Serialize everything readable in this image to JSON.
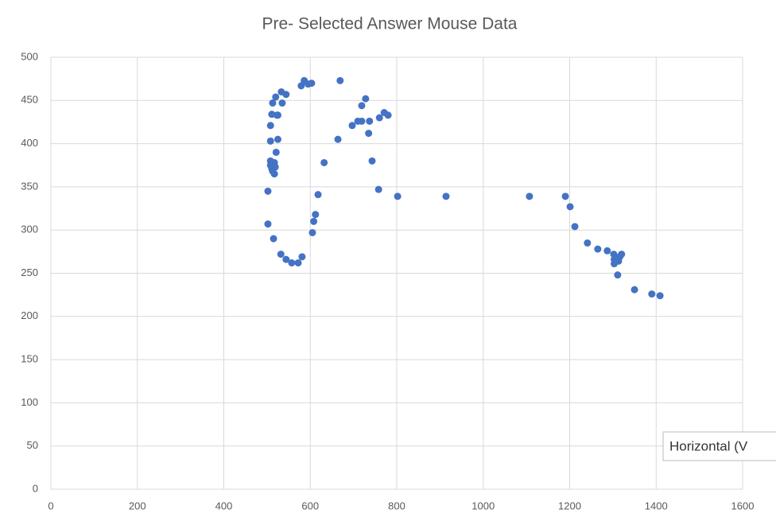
{
  "chart_data": {
    "type": "scatter",
    "title": "Pre- Selected Answer Mouse Data",
    "annotation": "Horizontal (V",
    "color": "#4472c4",
    "grid": true,
    "xlim": [
      0,
      1600
    ],
    "xticks": [
      0,
      200,
      400,
      600,
      800,
      1000,
      1200,
      1400,
      1600
    ],
    "ylim": [
      0,
      500
    ],
    "yticks": [
      0,
      50,
      100,
      150,
      200,
      250,
      300,
      350,
      400,
      450,
      500
    ],
    "x": [
      502,
      502,
      508,
      508,
      511,
      513,
      517,
      519,
      517,
      508,
      508,
      511,
      513,
      520,
      523,
      521,
      525,
      525,
      533,
      535,
      544,
      515,
      532,
      544,
      557,
      572,
      581,
      579,
      586,
      595,
      603,
      605,
      608,
      612,
      618,
      632,
      664,
      669,
      697,
      710,
      719,
      719,
      728,
      737,
      735,
      743,
      760,
      771,
      780,
      758,
      802,
      914,
      1107,
      1190,
      1201,
      1212,
      1241,
      1265,
      1287,
      1302,
      1303,
      1303,
      1316,
      1320,
      1313,
      1311,
      1350,
      1390,
      1409
    ],
    "values": [
      307,
      345,
      375,
      380,
      371,
      368,
      365,
      373,
      378,
      403,
      421,
      434,
      447,
      454,
      433,
      390,
      405,
      433,
      460,
      447,
      457,
      290,
      272,
      266,
      262,
      262,
      269,
      467,
      473,
      469,
      470,
      297,
      310,
      318,
      341,
      378,
      405,
      473,
      421,
      426,
      426,
      444,
      452,
      426,
      412,
      380,
      430,
      436,
      433,
      347,
      339,
      339,
      339,
      339,
      327,
      304,
      285,
      278,
      276,
      272,
      266,
      261,
      269,
      272,
      264,
      248,
      231,
      226,
      224
    ]
  }
}
